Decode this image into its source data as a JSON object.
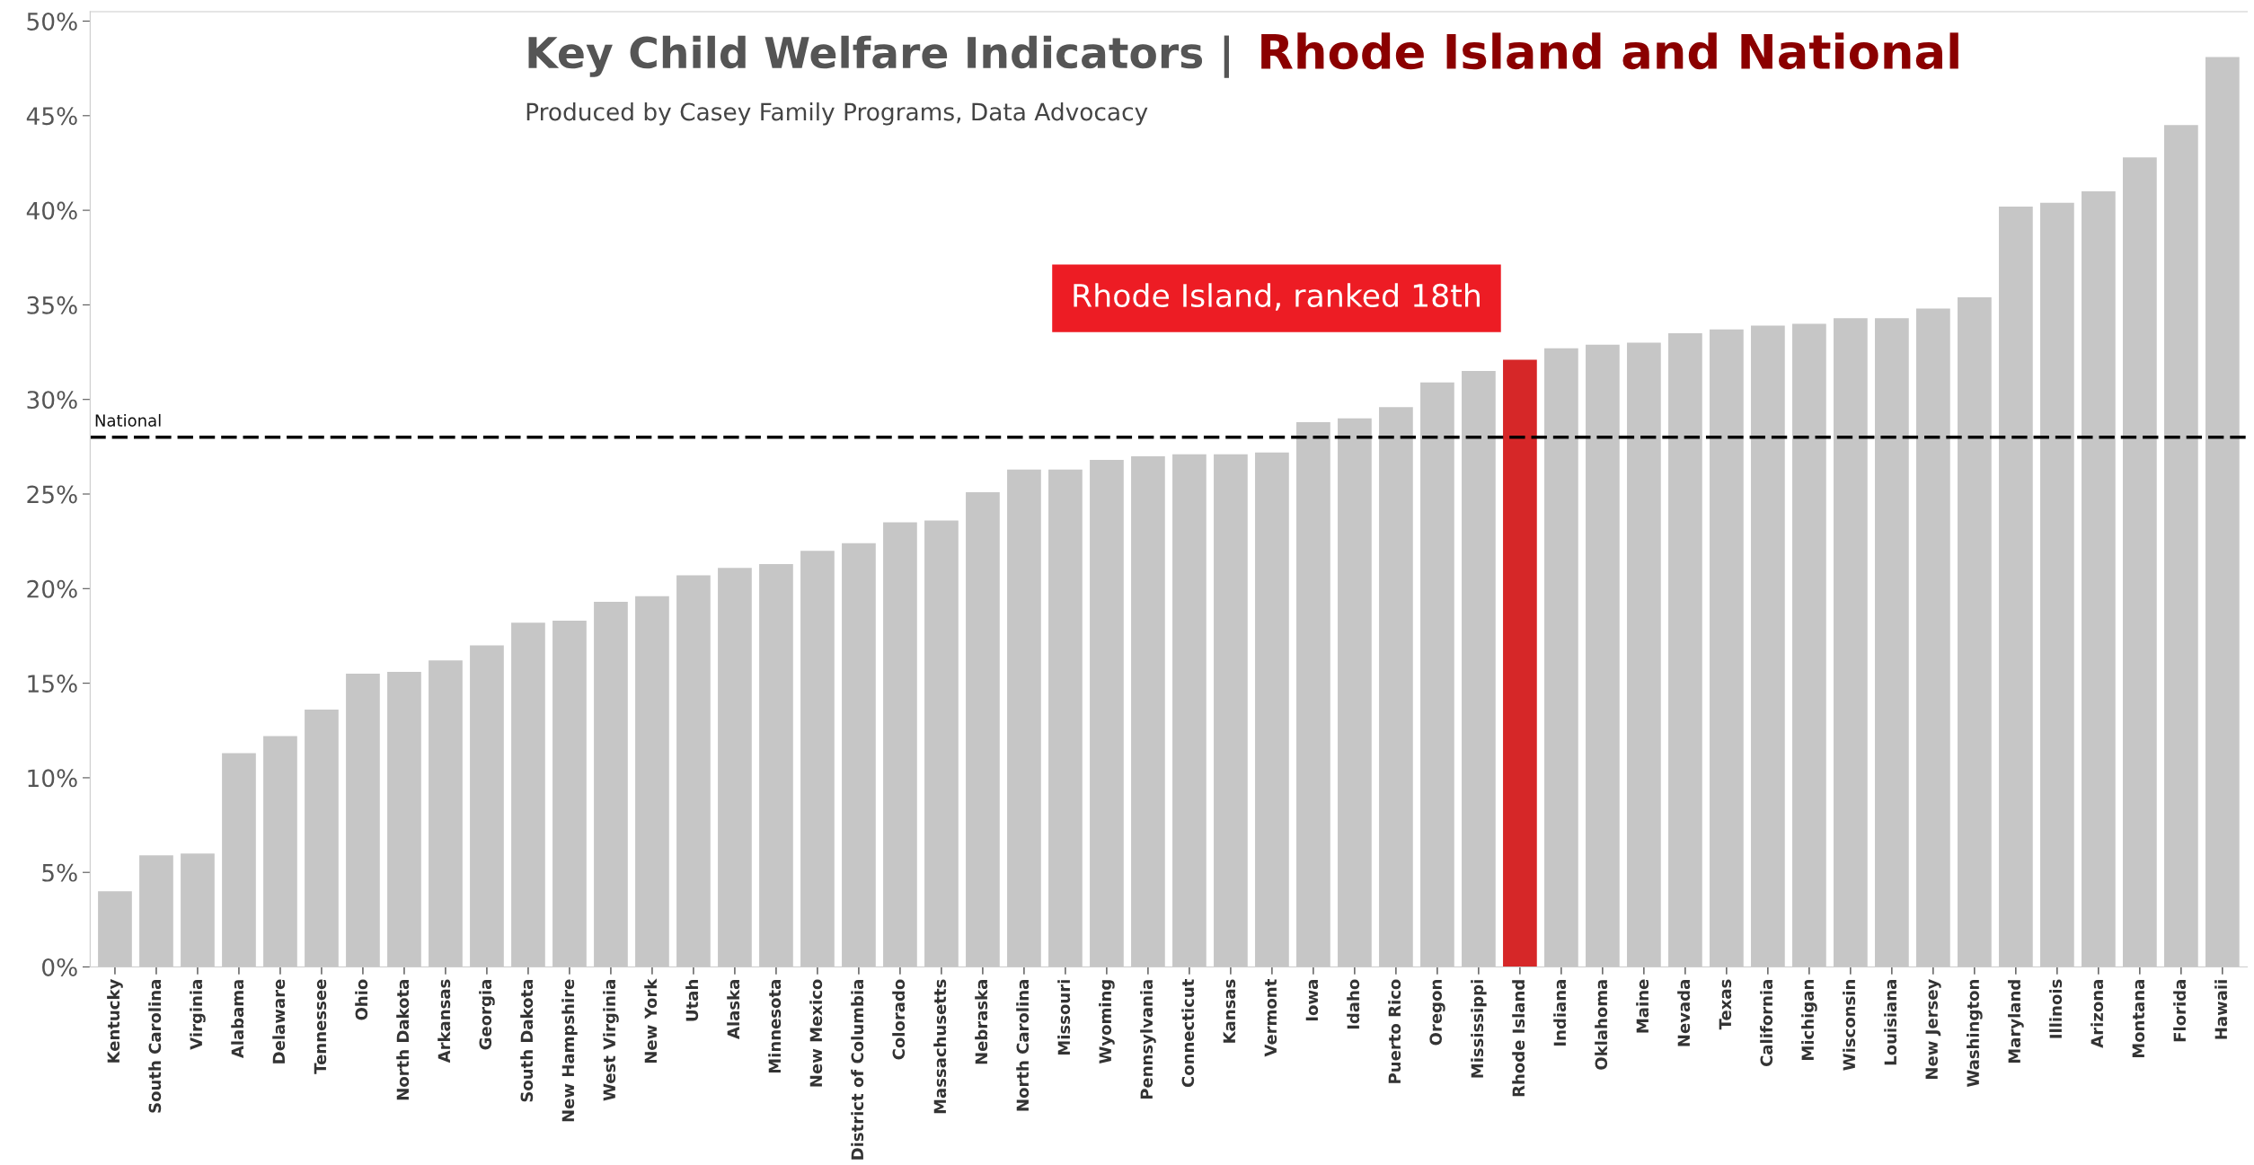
{
  "chart_data": {
    "type": "bar",
    "title": "Key Child Welfare Indicators |  Rhode Island and National",
    "subtitle": "Produced by Casey Family Programs, Data Advocacy",
    "categories": [
      "Kentucky",
      "South Carolina",
      "Virginia",
      "Alabama",
      "Delaware",
      "Tennessee",
      "Ohio",
      "North Dakota",
      "Arkansas",
      "Georgia",
      "South Dakota",
      "New Hampshire",
      "West Virginia",
      "New York",
      "Utah",
      "Alaska",
      "Minnesota",
      "New Mexico",
      "District of Columbia",
      "Colorado",
      "Massachusetts",
      "Nebraska",
      "North Carolina",
      "Missouri",
      "Wyoming",
      "Pennsylvania",
      "Connecticut",
      "Kansas",
      "Vermont",
      "Iowa",
      "Idaho",
      "Puerto Rico",
      "Oregon",
      "Mississippi",
      "Rhode Island",
      "Indiana",
      "Oklahoma",
      "Maine",
      "Nevada",
      "Texas",
      "California",
      "Michigan",
      "Wisconsin",
      "Louisiana",
      "New Jersey",
      "Washington",
      "Maryland",
      "Illinois",
      "Arizona",
      "Montana",
      "Florida",
      "Hawaii"
    ],
    "values": [
      4.0,
      5.9,
      6.0,
      11.3,
      12.2,
      13.6,
      15.5,
      15.6,
      16.2,
      17.0,
      18.2,
      18.3,
      19.3,
      19.6,
      20.7,
      21.1,
      21.3,
      22.0,
      22.4,
      23.5,
      23.6,
      25.1,
      26.3,
      26.3,
      26.8,
      27.0,
      27.1,
      27.1,
      27.2,
      28.8,
      29.0,
      29.6,
      30.9,
      31.5,
      32.1,
      32.7,
      32.9,
      33.0,
      33.5,
      33.7,
      33.9,
      34.0,
      34.3,
      34.3,
      34.8,
      35.4,
      40.2,
      40.4,
      41.0,
      42.8,
      44.5,
      48.1
    ],
    "colors": [
      "#c6c6c6",
      "#c6c6c6",
      "#c6c6c6",
      "#c6c6c6",
      "#c6c6c6",
      "#c6c6c6",
      "#c6c6c6",
      "#c6c6c6",
      "#c6c6c6",
      "#c6c6c6",
      "#c6c6c6",
      "#c6c6c6",
      "#c6c6c6",
      "#c6c6c6",
      "#c6c6c6",
      "#c6c6c6",
      "#c6c6c6",
      "#c6c6c6",
      "#c6c6c6",
      "#c6c6c6",
      "#c6c6c6",
      "#c6c6c6",
      "#c6c6c6",
      "#c6c6c6",
      "#c6c6c6",
      "#c6c6c6",
      "#c6c6c6",
      "#c6c6c6",
      "#c6c6c6",
      "#c6c6c6",
      "#c6c6c6",
      "#c6c6c6",
      "#c6c6c6",
      "#c6c6c6",
      "#d62728",
      "#c6c6c6",
      "#c6c6c6",
      "#c6c6c6",
      "#c6c6c6",
      "#c6c6c6",
      "#c6c6c6",
      "#c6c6c6",
      "#c6c6c6",
      "#c6c6c6",
      "#c6c6c6",
      "#c6c6c6",
      "#c6c6c6",
      "#c6c6c6",
      "#c6c6c6",
      "#c6c6c6",
      "#c6c6c6",
      "#c6c6c6"
    ],
    "ylim": [
      0,
      50.5
    ],
    "yticks": [
      {
        "value": 0,
        "label": "0%"
      },
      {
        "value": 5,
        "label": "5%"
      },
      {
        "value": 10,
        "label": "10%"
      },
      {
        "value": 15,
        "label": "15%"
      },
      {
        "value": 20,
        "label": "20%"
      },
      {
        "value": 25,
        "label": "25%"
      },
      {
        "value": 30,
        "label": "30%"
      },
      {
        "value": 35,
        "label": "35%"
      },
      {
        "value": 40,
        "label": "40%"
      },
      {
        "value": 45,
        "label": "45%"
      },
      {
        "value": 50,
        "label": "50%"
      }
    ],
    "ref_lines": [
      {
        "axis": "y",
        "value": 28.0,
        "label": "National",
        "color": "#000000",
        "line_style": "dashed"
      }
    ],
    "annotations": [
      "Rhode Island, ranked 18th"
    ],
    "grid": false,
    "legend": false
  }
}
